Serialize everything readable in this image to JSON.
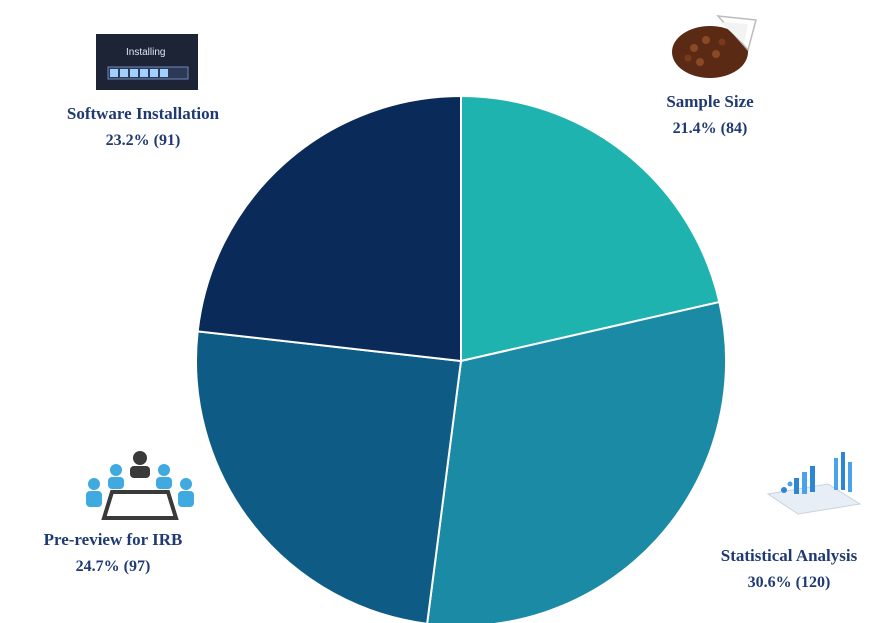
{
  "chart_data": {
    "type": "pie",
    "title": "",
    "slices": [
      {
        "name": "Sample Size",
        "value": 84,
        "percent": 21.4,
        "display": "21.4% (84)",
        "color": "#1fb3b0"
      },
      {
        "name": "Statistical Analysis",
        "value": 120,
        "percent": 30.6,
        "display": "30.6% (120)",
        "color": "#1a8aa5"
      },
      {
        "name": "Pre-review for IRB",
        "value": 97,
        "percent": 24.7,
        "display": "24.7% (97)",
        "color": "#0e5c86"
      },
      {
        "name": "Software Installation",
        "value": 91,
        "percent": 23.2,
        "display": "23.2% (91)",
        "color": "#0a2a5a"
      }
    ]
  },
  "icons": {
    "software": {
      "name": "installing-progress-icon",
      "text": "Installing"
    },
    "sample": {
      "name": "pie-chart-icon"
    },
    "irb": {
      "name": "meeting-table-icon"
    },
    "stat": {
      "name": "analytics-graph-icon"
    }
  }
}
